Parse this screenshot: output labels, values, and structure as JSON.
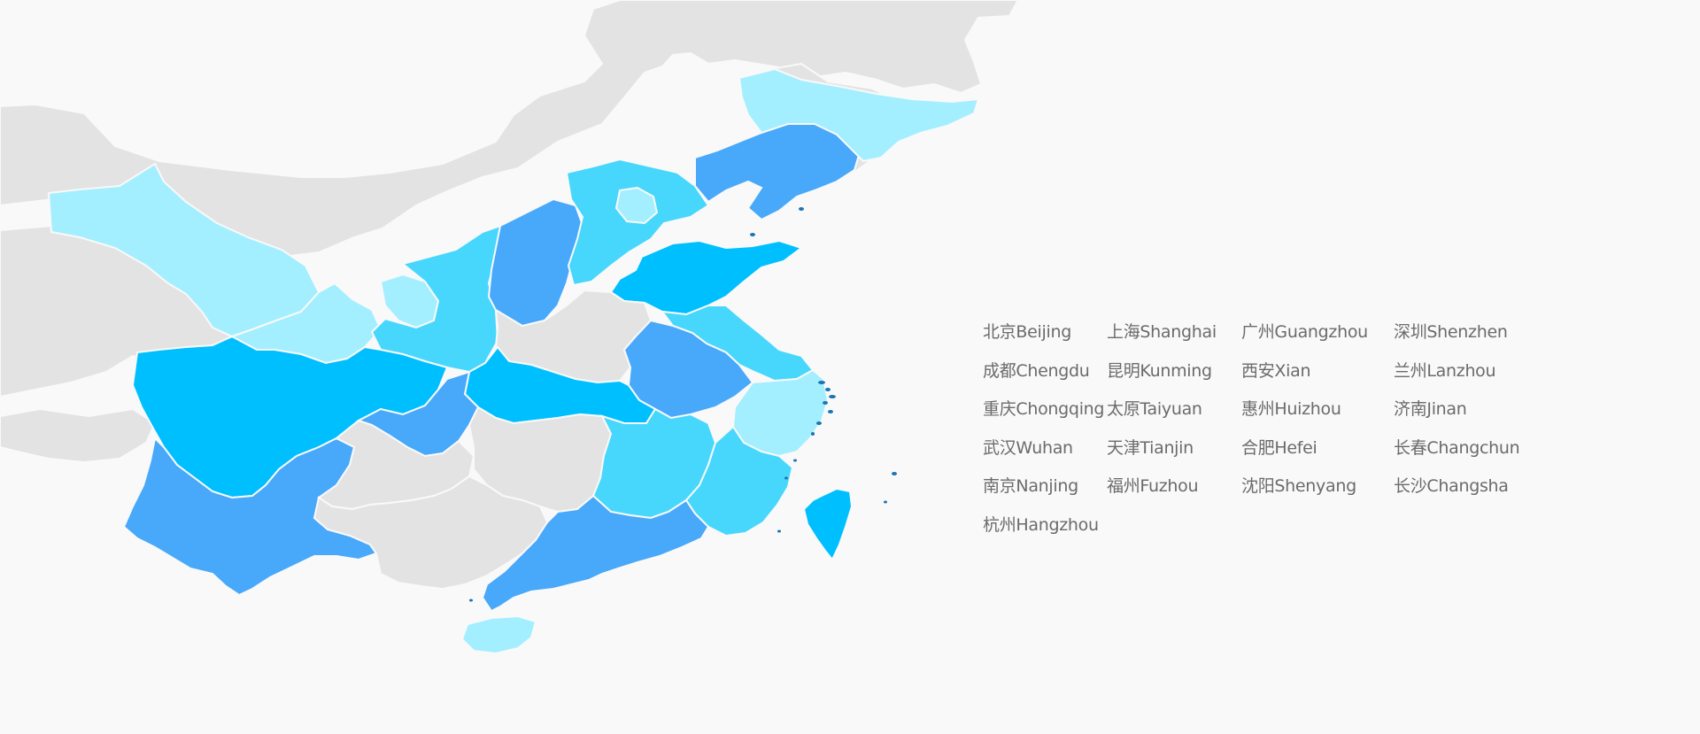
{
  "colors": {
    "background": "#f9f9f9",
    "neighbor_land": "#e3e3e3",
    "unlisted_province": "#e3e3e3",
    "tier_lightest": "#a3efff",
    "tier_light": "#47d7fd",
    "tier_medium": "#48a8fa",
    "tier_strong": "#00bfff",
    "islands": "#1c74b3",
    "label_text": "#6b6b6b"
  },
  "map": {
    "regions": [
      {
        "id": "xinjiang-partial",
        "tier": "tier_lightest"
      },
      {
        "id": "gansu",
        "tier": "tier_lightest"
      },
      {
        "id": "ningxia",
        "tier": "tier_lightest"
      },
      {
        "id": "heilongjiang-jilin",
        "tier": "tier_lightest"
      },
      {
        "id": "beijing-tianjin",
        "tier": "tier_lightest"
      },
      {
        "id": "zhejiang",
        "tier": "tier_lightest"
      },
      {
        "id": "hainan",
        "tier": "tier_lightest"
      },
      {
        "id": "shaanxi",
        "tier": "tier_light"
      },
      {
        "id": "hebei",
        "tier": "tier_light"
      },
      {
        "id": "jiangsu",
        "tier": "tier_light"
      },
      {
        "id": "jiangxi",
        "tier": "tier_light"
      },
      {
        "id": "fujian",
        "tier": "tier_light"
      },
      {
        "id": "shanxi",
        "tier": "tier_medium"
      },
      {
        "id": "liaoning",
        "tier": "tier_medium"
      },
      {
        "id": "anhui",
        "tier": "tier_medium"
      },
      {
        "id": "chongqing",
        "tier": "tier_medium"
      },
      {
        "id": "yunnan",
        "tier": "tier_medium"
      },
      {
        "id": "guangdong",
        "tier": "tier_medium"
      },
      {
        "id": "shandong",
        "tier": "tier_strong"
      },
      {
        "id": "sichuan",
        "tier": "tier_strong"
      },
      {
        "id": "hubei",
        "tier": "tier_strong"
      },
      {
        "id": "taiwan",
        "tier": "tier_strong"
      },
      {
        "id": "henan",
        "tier": "unlisted_province"
      },
      {
        "id": "hunan",
        "tier": "unlisted_province"
      },
      {
        "id": "guizhou",
        "tier": "unlisted_province"
      },
      {
        "id": "guangxi",
        "tier": "unlisted_province"
      }
    ]
  },
  "cities": [
    "北京Beijing",
    "上海Shanghai",
    "广州Guangzhou",
    "深圳Shenzhen",
    "成都Chengdu",
    "昆明Kunming",
    "西安Xian",
    "兰州Lanzhou",
    "重庆Chongqing",
    "太原Taiyuan",
    "惠州Huizhou",
    "济南Jinan",
    "武汉Wuhan",
    "天津Tianjin",
    "合肥Hefei",
    "长春Changchun",
    "南京Nanjing",
    "福州Fuzhou",
    "沈阳Shenyang",
    "长沙Changsha",
    "杭州Hangzhou"
  ]
}
